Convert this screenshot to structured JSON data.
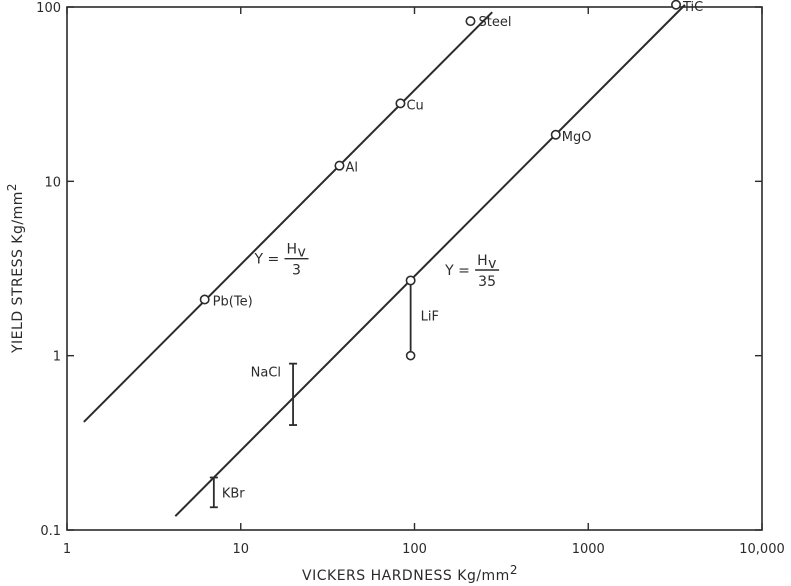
{
  "chart_data": {
    "type": "scatter",
    "xscale": "log",
    "yscale": "log",
    "xlim": [
      1,
      10000
    ],
    "ylim": [
      0.1,
      100
    ],
    "xlabel": "VICKERS HARDNESS Kg/mm",
    "xlabel_sup": "2",
    "ylabel": "YIELD STRESS Kg/mm",
    "ylabel_sup": "2",
    "x_ticks": [
      {
        "value": 1,
        "label": "1"
      },
      {
        "value": 10,
        "label": "10"
      },
      {
        "value": 100,
        "label": "100"
      },
      {
        "value": 1000,
        "label": "1000"
      },
      {
        "value": 10000,
        "label": "10,000"
      }
    ],
    "y_ticks": [
      {
        "value": 0.1,
        "label": "0.1"
      },
      {
        "value": 1,
        "label": "1"
      },
      {
        "value": 10,
        "label": "10"
      },
      {
        "value": 100,
        "label": "100"
      }
    ],
    "lines": [
      {
        "id": "h3",
        "divisor": 3,
        "x_range": [
          1.25,
          280
        ],
        "eq_lhs": "Y =",
        "eq_num": "H",
        "eq_sub": "v",
        "eq_den": "3",
        "eq_at": [
          12,
          3.6
        ]
      },
      {
        "id": "h35",
        "divisor": 35,
        "x_range": [
          4.2,
          3600
        ],
        "eq_lhs": "Y =",
        "eq_num": "H",
        "eq_sub": "v",
        "eq_den": "35",
        "eq_at": [
          150,
          3.1
        ]
      }
    ],
    "points": [
      {
        "name": "Pb(Te)",
        "x": 6.2,
        "y": 2.1
      },
      {
        "name": "Al",
        "x": 37,
        "y": 12.3
      },
      {
        "name": "Cu",
        "x": 83,
        "y": 28
      },
      {
        "name": "Steel",
        "x": 210,
        "y": 83
      },
      {
        "name": "MgO",
        "x": 650,
        "y": 18.5
      },
      {
        "name": "TiC",
        "x": 3200,
        "y": 103
      },
      {
        "name": "LiF",
        "x": 95,
        "y": 2.7
      }
    ],
    "ranges": [
      {
        "name": "LiF",
        "x": 95,
        "ymin": 1.0,
        "ymax": 2.7,
        "open_ends": true
      },
      {
        "name": "NaCl",
        "x": 20,
        "ymin": 0.4,
        "ymax": 0.9,
        "open_ends": false
      },
      {
        "name": "KBr",
        "x": 7,
        "ymin": 0.135,
        "ymax": 0.2,
        "open_ends": false
      }
    ]
  }
}
